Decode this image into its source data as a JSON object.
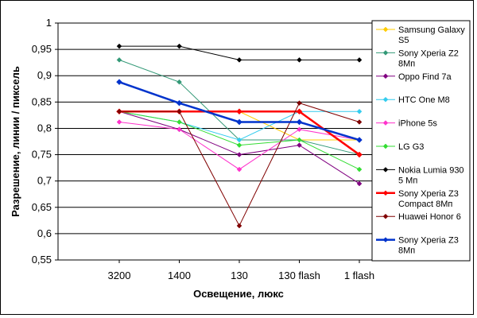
{
  "chart_data": {
    "type": "line",
    "title": "",
    "xlabel": "Освещение, люкс",
    "ylabel": "Разрешение, линии / пиксель",
    "categories": [
      "3200",
      "1400",
      "130",
      "130 flash",
      "1 flash"
    ],
    "ylim": [
      0.55,
      1.0
    ],
    "yticks": [
      0.55,
      0.6,
      0.65,
      0.7,
      0.75,
      0.8,
      0.85,
      0.9,
      0.95,
      1.0
    ],
    "ytick_labels": [
      "0,55",
      "0,6",
      "0,65",
      "0,7",
      "0,75",
      "0,8",
      "0,85",
      "0,9",
      "0,95",
      "1"
    ],
    "grid": true,
    "legend_position": "right",
    "series": [
      {
        "name": "Samsung Galaxy S5",
        "legend_lines": [
          "Samsung Galaxy",
          "S5"
        ],
        "color": "#ffcc00",
        "marker": "diamond",
        "bold": false,
        "values": [
          0.832,
          0.832,
          0.832,
          0.778,
          0.778
        ]
      },
      {
        "name": "Sony Xperia Z2 8Мп",
        "legend_lines": [
          "Sony Xperia Z2",
          "8Мп"
        ],
        "color": "#339977",
        "marker": "diamond",
        "bold": false,
        "values": [
          0.93,
          0.888,
          0.778,
          0.778,
          0.75
        ]
      },
      {
        "name": "Oppo Find 7a",
        "legend_lines": [
          "Oppo Find 7a"
        ],
        "color": "#800080",
        "marker": "diamond",
        "bold": false,
        "values": [
          0.832,
          0.798,
          0.75,
          0.768,
          0.695
        ]
      },
      {
        "name": "HTC One M8",
        "legend_lines": [
          "HTC One M8"
        ],
        "color": "#33ccee",
        "marker": "diamond",
        "bold": false,
        "values": [
          0.832,
          0.812,
          0.778,
          0.832,
          0.832
        ]
      },
      {
        "name": "iPhone 5s",
        "legend_lines": [
          "iPhone 5s"
        ],
        "color": "#ff33cc",
        "marker": "diamond",
        "bold": false,
        "values": [
          0.812,
          0.798,
          0.722,
          0.798,
          0.778
        ]
      },
      {
        "name": "LG G3",
        "legend_lines": [
          "LG G3"
        ],
        "color": "#33dd33",
        "marker": "diamond",
        "bold": false,
        "values": [
          0.832,
          0.812,
          0.768,
          0.778,
          0.722
        ]
      },
      {
        "name": "Nokia Lumia 930 5 Мп",
        "legend_lines": [
          "Nokia Lumia 930",
          "5 Мп"
        ],
        "color": "#000000",
        "marker": "diamond",
        "bold": false,
        "values": [
          0.956,
          0.956,
          0.93,
          0.93,
          0.93
        ]
      },
      {
        "name": "Sony Xperia Z3 Compact 8Мп",
        "legend_lines": [
          "Sony Xperia Z3",
          "Compact 8Мп"
        ],
        "color": "#ff0000",
        "marker": "diamond",
        "bold": true,
        "values": [
          0.832,
          0.832,
          0.832,
          0.832,
          0.75
        ]
      },
      {
        "name": "Huawei Honor 6",
        "legend_lines": [
          "Huawei Honor 6"
        ],
        "color": "#800000",
        "marker": "diamond",
        "bold": false,
        "values": [
          0.832,
          0.832,
          0.615,
          0.848,
          0.812
        ]
      },
      {
        "name": "Sony Xperia Z3 8Мп",
        "legend_lines": [
          "Sony Xperia Z3",
          "8Мп"
        ],
        "color": "#0033cc",
        "marker": "diamond",
        "bold": true,
        "values": [
          0.888,
          0.848,
          0.812,
          0.812,
          0.778
        ]
      }
    ]
  }
}
